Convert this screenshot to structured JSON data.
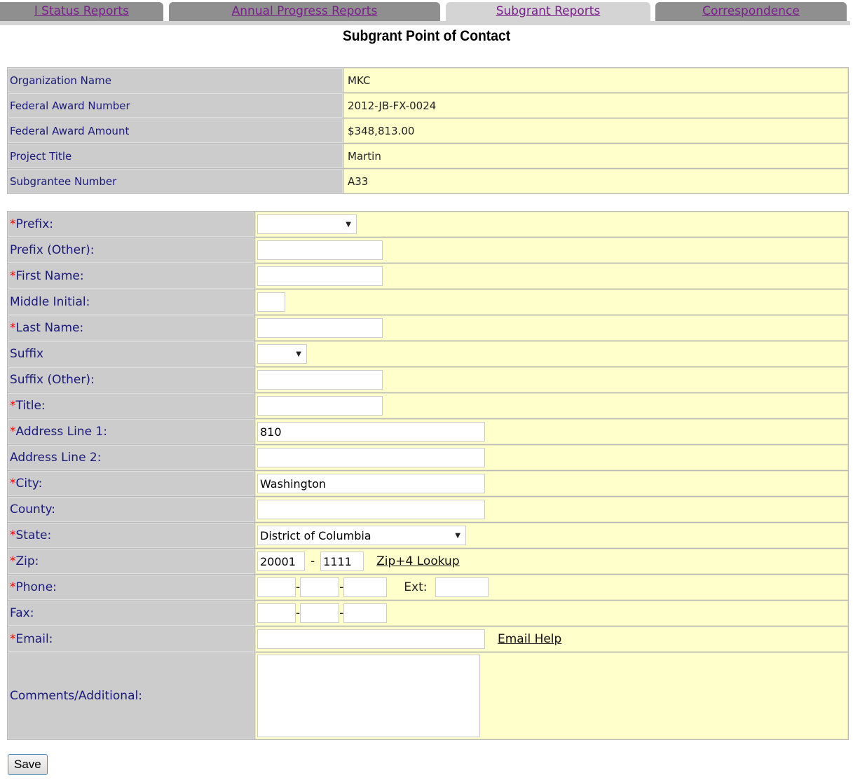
{
  "tabs": [
    {
      "label": "l Status Reports",
      "active": false
    },
    {
      "label": "Annual Progress Reports",
      "active": false
    },
    {
      "label": "Subgrant Reports",
      "active": true
    },
    {
      "label": "Correspondence",
      "active": false
    }
  ],
  "page_title": "Subgrant Point of Contact",
  "info": [
    {
      "label": "Organization Name",
      "value": "MKC"
    },
    {
      "label": "Federal Award Number",
      "value": "2012-JB-FX-0024"
    },
    {
      "label": "Federal Award Amount",
      "value": "$348,813.00"
    },
    {
      "label": "Project Title",
      "value": "Martin"
    },
    {
      "label": "Subgrantee Number",
      "value": "A33"
    }
  ],
  "form": {
    "required_mark": "*",
    "prefix": {
      "label": "Prefix:",
      "value": ""
    },
    "prefix_other": {
      "label": "Prefix (Other):",
      "value": ""
    },
    "first_name": {
      "label": "First Name:",
      "value": ""
    },
    "middle_initial": {
      "label": "Middle Initial:",
      "value": ""
    },
    "last_name": {
      "label": "Last Name:",
      "value": ""
    },
    "suffix": {
      "label": "Suffix",
      "value": ""
    },
    "suffix_other": {
      "label": "Suffix (Other):",
      "value": ""
    },
    "title": {
      "label": "Title:",
      "value": ""
    },
    "address1": {
      "label": "Address Line 1:",
      "value": "810"
    },
    "address2": {
      "label": "Address Line 2:",
      "value": ""
    },
    "city": {
      "label": "City:",
      "value": "Washington"
    },
    "county": {
      "label": "County:",
      "value": ""
    },
    "state": {
      "label": "State:",
      "value": "District of Columbia"
    },
    "zip": {
      "label": "Zip:",
      "value": "20001",
      "plus4": "1111",
      "separator": "-",
      "lookup": "Zip+4 Lookup"
    },
    "phone": {
      "label": "Phone:",
      "ext_label": "Ext:",
      "separator": "-"
    },
    "fax": {
      "label": "Fax:",
      "separator": "-"
    },
    "email": {
      "label": "Email:",
      "value": "",
      "help": "Email Help"
    },
    "comments": {
      "label": "Comments/Additional:",
      "value": ""
    }
  },
  "save_label": "Save"
}
